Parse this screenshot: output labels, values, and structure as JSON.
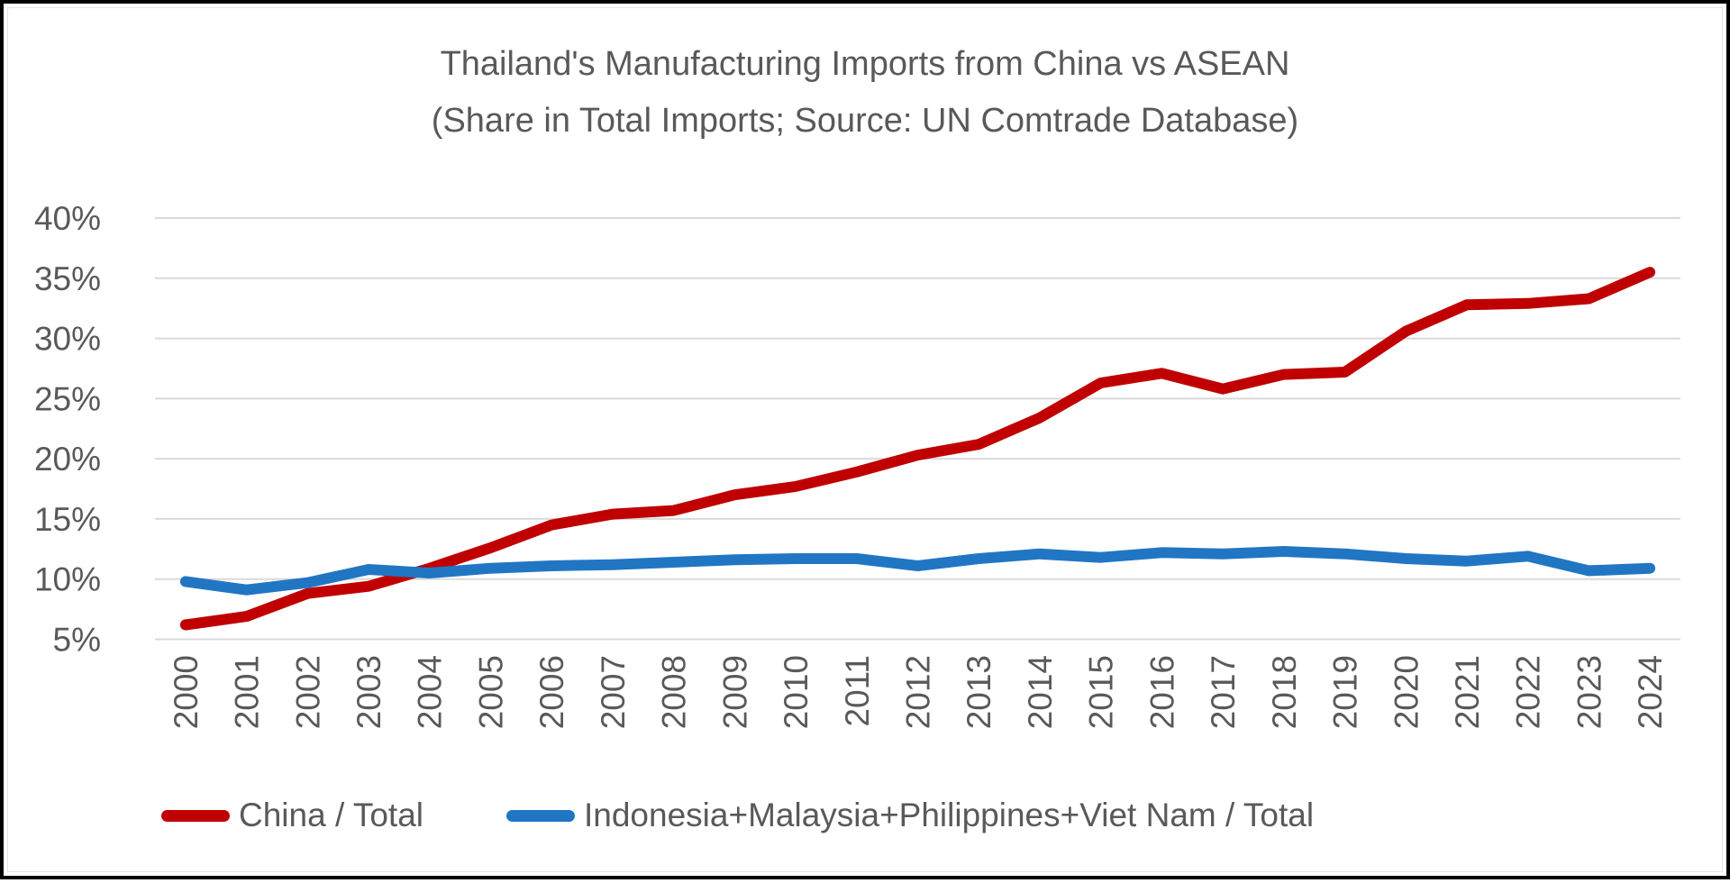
{
  "frame": {
    "background": "#FFFFFF",
    "border_color": "#000000"
  },
  "chart_data": {
    "type": "line",
    "title": "Thailand's Manufacturing Imports from China vs ASEAN",
    "subtitle": "(Share in Total Imports; Source: UN Comtrade Database)",
    "categories": [
      "2000",
      "2001",
      "2002",
      "2003",
      "2004",
      "2005",
      "2006",
      "2007",
      "2008",
      "2009",
      "2010",
      "2011",
      "2012",
      "2013",
      "2014",
      "2015",
      "2016",
      "2017",
      "2018",
      "2019",
      "2020",
      "2021",
      "2022",
      "2023",
      "2024"
    ],
    "series": [
      {
        "name": "China / Total",
        "color": "#C00000",
        "values": [
          6.2,
          6.9,
          8.8,
          9.4,
          10.9,
          12.6,
          14.5,
          15.4,
          15.7,
          17.0,
          17.7,
          18.9,
          20.3,
          21.2,
          23.4,
          26.3,
          27.1,
          25.8,
          27.0,
          27.2,
          30.6,
          32.8,
          32.9,
          33.3,
          35.5
        ]
      },
      {
        "name": "Indonesia+Malaysia+Philippines+Viet Nam / Total",
        "color": "#2176C4",
        "values": [
          9.8,
          9.1,
          9.7,
          10.8,
          10.5,
          10.9,
          11.1,
          11.2,
          11.4,
          11.6,
          11.7,
          11.7,
          11.1,
          11.7,
          12.1,
          11.8,
          12.2,
          12.1,
          12.3,
          12.1,
          11.7,
          11.5,
          11.9,
          10.7,
          10.9
        ]
      }
    ],
    "y_axis": {
      "unit": "%",
      "min": 5,
      "max": 40,
      "tick_values": [
        40,
        35,
        30,
        25,
        20,
        15,
        10,
        5
      ],
      "ticks": [
        "40%",
        "35%",
        "30%",
        "25%",
        "20%",
        "15%",
        "10%",
        "5%"
      ]
    },
    "x_axis": {
      "label_rotation_degrees": 90
    },
    "grid": true,
    "legend_position": "bottom",
    "text_color": "#595959",
    "gridline_color": "#D9D9D9"
  }
}
